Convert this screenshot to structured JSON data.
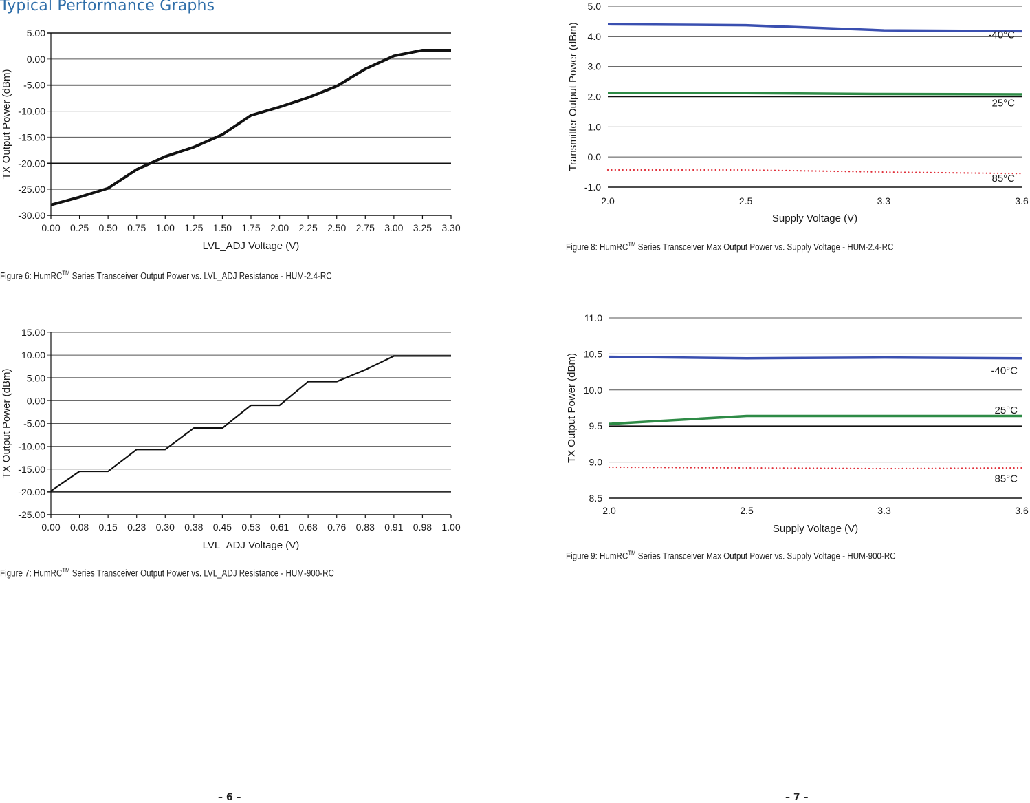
{
  "heading": "Typical Performance Graphs",
  "page_left": "– 6 –",
  "page_right": "– 7 –",
  "captions": {
    "fig6": {
      "pre": "Figure 6: HumRC",
      "sup": "TM",
      "post": " Series Transceiver Output Power vs. LVL_ADJ Resistance - HUM-2.4-RC"
    },
    "fig7": {
      "pre": "Figure 7: HumRC",
      "sup": "TM",
      "post": " Series Transceiver Output Power vs. LVL_ADJ Resistance - HUM-900-RC"
    },
    "fig8": {
      "pre": "Figure 8: HumRC",
      "sup": "TM",
      "post": " Series Transceiver Max Output Power vs. Supply Voltage - HUM-2.4-RC"
    },
    "fig9": {
      "pre": "Figure 9: HumRC",
      "sup": "TM",
      "post": " Series Transceiver Max Output Power vs. Supply Voltage - HUM-900-RC"
    }
  },
  "colors": {
    "m40": "#3a4fb0",
    "c25": "#2e8b46",
    "c85": "#e0303a",
    "black": "#111111"
  },
  "chart_data": [
    {
      "id": "fig6",
      "type": "line",
      "xlabel": "LVL_ADJ Voltage (V)",
      "ylabel": "TX Output Power (dBm)",
      "ylim": [
        -30,
        5
      ],
      "yticks": [
        "5.00",
        "0.00",
        "-5.00",
        "-10.00",
        "-15.00",
        "-20.00",
        "-25.00",
        "-30.00"
      ],
      "ytick_values": [
        5,
        0,
        -5,
        -10,
        -15,
        -20,
        -25,
        -30
      ],
      "xticks": [
        "0.00",
        "0.25",
        "0.50",
        "0.75",
        "1.00",
        "1.25",
        "1.50",
        "1.75",
        "2.00",
        "2.25",
        "2.50",
        "2.75",
        "3.00",
        "3.25",
        "3.30"
      ],
      "grid": true,
      "series": [
        {
          "values": [
            -28.0,
            -26.5,
            -24.8,
            -21.2,
            -18.7,
            -16.9,
            -14.5,
            -10.8,
            -9.2,
            -7.4,
            -5.2,
            -1.9,
            0.6,
            1.7,
            1.7
          ],
          "color": "black"
        }
      ]
    },
    {
      "id": "fig7",
      "type": "line",
      "xlabel": "LVL_ADJ Voltage (V)",
      "ylabel": "TX Output Power (dBm)",
      "ylim": [
        -25,
        15
      ],
      "yticks": [
        "15.00",
        "10.00",
        "5.00",
        "0.00",
        "-5.00",
        "-10.00",
        "-15.00",
        "-20.00",
        "-25.00"
      ],
      "ytick_values": [
        15,
        10,
        5,
        0,
        -5,
        -10,
        -15,
        -20,
        -25
      ],
      "xticks": [
        "0.00",
        "0.08",
        "0.15",
        "0.23",
        "0.30",
        "0.38",
        "0.45",
        "0.53",
        "0.61",
        "0.68",
        "0.76",
        "0.83",
        "0.91",
        "0.98",
        "1.00"
      ],
      "grid": true,
      "series": [
        {
          "values": [
            -19.8,
            -15.5,
            -15.5,
            -10.7,
            -10.7,
            -6.0,
            -6.0,
            -1.0,
            -1.0,
            4.2,
            4.2,
            6.8,
            9.8,
            9.8,
            9.8
          ],
          "color": "black"
        }
      ]
    },
    {
      "id": "fig8",
      "type": "line",
      "xlabel": "Supply Voltage (V)",
      "ylabel": "Transmitter Output Power (dBm)",
      "ylim": [
        -1,
        5
      ],
      "yticks": [
        "5.0",
        "4.0",
        "3.0",
        "2.0",
        "1.0",
        "0.0",
        "-1.0"
      ],
      "ytick_values": [
        5,
        4,
        3,
        2,
        1,
        0,
        -1
      ],
      "xticks": [
        "2.0",
        "2.5",
        "3.3",
        "3.6"
      ],
      "grid": true,
      "series": [
        {
          "name": "-40°C",
          "values": [
            4.4,
            4.37,
            4.2,
            4.17
          ],
          "color": "m40",
          "dotted": false
        },
        {
          "name": "25°C",
          "values": [
            2.12,
            2.12,
            2.09,
            2.08
          ],
          "color": "c25",
          "dotted": false
        },
        {
          "name": "85°C",
          "values": [
            -0.43,
            -0.43,
            -0.5,
            -0.55
          ],
          "color": "c85",
          "dotted": true
        }
      ],
      "label_y": [
        4.05,
        1.8,
        -0.7
      ]
    },
    {
      "id": "fig9",
      "type": "line",
      "xlabel": "Supply Voltage (V)",
      "ylabel": "TX Output Power (dBm)",
      "ylim": [
        8.5,
        11.0
      ],
      "yticks": [
        "11.0",
        "10.5",
        "10.0",
        "9.5",
        "9.0",
        "8.5"
      ],
      "ytick_values": [
        11.0,
        10.5,
        10.0,
        9.5,
        9.0,
        8.5
      ],
      "xticks": [
        "2.0",
        "2.5",
        "3.3",
        "3.6"
      ],
      "grid": true,
      "series": [
        {
          "name": "-40°C",
          "values": [
            10.46,
            10.44,
            10.45,
            10.44
          ],
          "color": "m40",
          "dotted": false
        },
        {
          "name": "25°C",
          "values": [
            9.53,
            9.64,
            9.64,
            9.64
          ],
          "color": "c25",
          "dotted": false
        },
        {
          "name": "85°C",
          "values": [
            8.93,
            8.92,
            8.91,
            8.92
          ],
          "color": "c85",
          "dotted": true
        }
      ],
      "label_y": [
        10.27,
        9.72,
        8.77
      ]
    }
  ]
}
